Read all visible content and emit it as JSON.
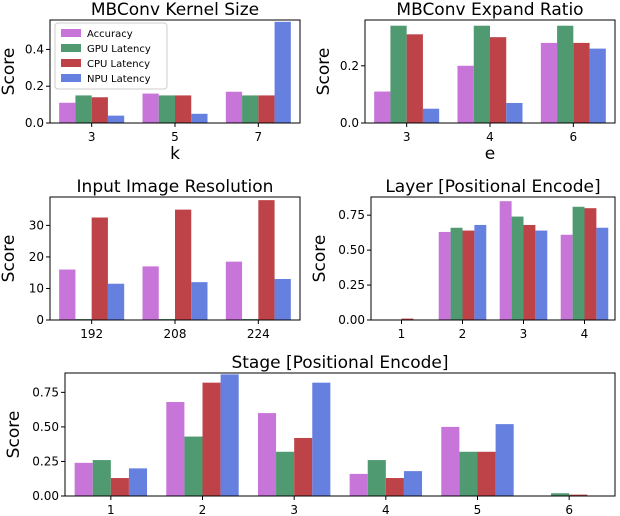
{
  "series_names": [
    "Accuracy",
    "GPU Latency",
    "CPU Latency",
    "NPU Latency"
  ],
  "colors": [
    "#c875d9",
    "#4f9a70",
    "#bd4349",
    "#6680e0"
  ],
  "chart_data": [
    {
      "type": "bar",
      "title": "MBConv Kernel Size",
      "xlabel": "k",
      "ylabel": "Score",
      "categories": [
        "3",
        "5",
        "7"
      ],
      "series": [
        {
          "name": "Accuracy",
          "values": [
            0.11,
            0.16,
            0.17
          ]
        },
        {
          "name": "GPU Latency",
          "values": [
            0.15,
            0.15,
            0.15
          ]
        },
        {
          "name": "CPU Latency",
          "values": [
            0.14,
            0.15,
            0.15
          ]
        },
        {
          "name": "NPU Latency",
          "values": [
            0.04,
            0.05,
            0.55
          ]
        }
      ],
      "ylim": [
        0,
        0.56
      ],
      "yticks": [
        0.0,
        0.2,
        0.4
      ],
      "ytick_labels": [
        "0.0",
        "0.2",
        "0.4"
      ],
      "legend": "top-left"
    },
    {
      "type": "bar",
      "title": "MBConv Expand Ratio",
      "xlabel": "e",
      "ylabel": "Score",
      "categories": [
        "3",
        "4",
        "6"
      ],
      "series": [
        {
          "name": "Accuracy",
          "values": [
            0.11,
            0.2,
            0.28
          ]
        },
        {
          "name": "GPU Latency",
          "values": [
            0.34,
            0.34,
            0.34
          ]
        },
        {
          "name": "CPU Latency",
          "values": [
            0.31,
            0.3,
            0.28
          ]
        },
        {
          "name": "NPU Latency",
          "values": [
            0.05,
            0.07,
            0.26
          ]
        }
      ],
      "ylim": [
        0,
        0.36
      ],
      "yticks": [
        0.0,
        0.2
      ],
      "ytick_labels": [
        "0.0",
        "0.2"
      ]
    },
    {
      "type": "bar",
      "title": "Input Image Resolution",
      "xlabel": "",
      "ylabel": "Score",
      "categories": [
        "192",
        "208",
        "224"
      ],
      "series": [
        {
          "name": "Accuracy",
          "values": [
            16,
            17,
            18.5
          ]
        },
        {
          "name": "GPU Latency",
          "values": [
            0.3,
            0.3,
            0.3
          ]
        },
        {
          "name": "CPU Latency",
          "values": [
            32.5,
            35,
            38
          ]
        },
        {
          "name": "NPU Latency",
          "values": [
            11.5,
            12,
            13
          ]
        }
      ],
      "ylim": [
        0,
        39
      ],
      "yticks": [
        0,
        10,
        20,
        30
      ],
      "ytick_labels": [
        "0",
        "10",
        "20",
        "30"
      ]
    },
    {
      "type": "bar",
      "title": "Layer [Positional Encode]",
      "xlabel": "",
      "ylabel": "Score",
      "categories": [
        "1",
        "2",
        "3",
        "4"
      ],
      "series": [
        {
          "name": "Accuracy",
          "values": [
            0.0,
            0.63,
            0.85,
            0.61
          ]
        },
        {
          "name": "GPU Latency",
          "values": [
            0.0,
            0.66,
            0.74,
            0.81
          ]
        },
        {
          "name": "CPU Latency",
          "values": [
            0.01,
            0.64,
            0.68,
            0.8
          ]
        },
        {
          "name": "NPU Latency",
          "values": [
            0.0,
            0.68,
            0.64,
            0.66
          ]
        }
      ],
      "ylim": [
        0,
        0.88
      ],
      "yticks": [
        0.0,
        0.25,
        0.5,
        0.75
      ],
      "ytick_labels": [
        "0.00",
        "0.25",
        "0.50",
        "0.75"
      ]
    },
    {
      "type": "bar",
      "title": "Stage [Positional Encode]",
      "xlabel": "",
      "ylabel": "Score",
      "categories": [
        "1",
        "2",
        "3",
        "4",
        "5",
        "6"
      ],
      "series": [
        {
          "name": "Accuracy",
          "values": [
            0.24,
            0.68,
            0.6,
            0.16,
            0.5,
            0.0
          ]
        },
        {
          "name": "GPU Latency",
          "values": [
            0.26,
            0.43,
            0.32,
            0.26,
            0.32,
            0.02
          ]
        },
        {
          "name": "CPU Latency",
          "values": [
            0.13,
            0.82,
            0.42,
            0.13,
            0.32,
            0.01
          ]
        },
        {
          "name": "NPU Latency",
          "values": [
            0.2,
            0.88,
            0.82,
            0.18,
            0.52,
            0.0
          ]
        }
      ],
      "ylim": [
        0,
        0.89
      ],
      "yticks": [
        0.0,
        0.25,
        0.5,
        0.75
      ],
      "ytick_labels": [
        "0.00",
        "0.25",
        "0.50",
        "0.75"
      ]
    }
  ]
}
